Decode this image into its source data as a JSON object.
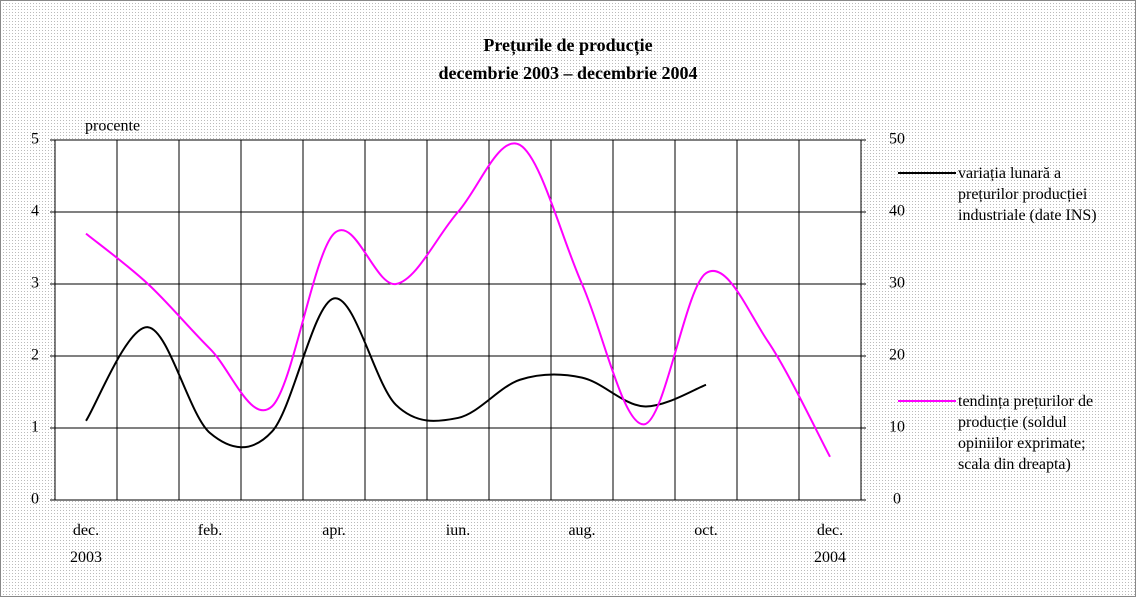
{
  "chart_data": {
    "type": "line",
    "title": "Prețurile de producție",
    "subtitle": "decembrie 2003 – decembrie 2004",
    "y_label": "procente",
    "categories": [
      "dec.\n2003",
      null,
      "feb.",
      null,
      "apr.",
      null,
      "iun.",
      null,
      "aug.",
      null,
      "oct.",
      null,
      "dec.\n2004"
    ],
    "ylim": [
      0,
      5
    ],
    "yticks": [
      0,
      1,
      2,
      3,
      4,
      5
    ],
    "y2lim": [
      0,
      50
    ],
    "y2ticks": [
      0,
      10,
      20,
      30,
      40,
      50
    ],
    "grid": true,
    "series": [
      {
        "name": "variația lunară a prețurilor producției industriale (date INS)",
        "color": "#000000",
        "values": [
          1.1,
          2.4,
          0.93,
          0.95,
          2.8,
          1.32,
          1.14,
          1.67,
          1.7,
          1.3,
          1.6,
          null,
          null
        ]
      },
      {
        "name": "tendința prețurilor de producție (soldul opiniilor exprimate; scala din dreapta)",
        "color": "#ff00ff",
        "axis": "y2",
        "values": [
          37,
          30,
          21,
          13,
          37,
          30,
          40,
          49.3,
          30,
          10.5,
          31.5,
          22,
          6
        ]
      }
    ]
  }
}
